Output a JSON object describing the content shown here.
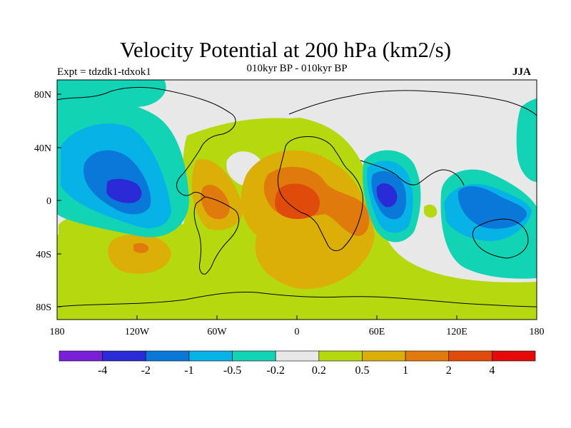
{
  "title": "Velocity Potential at 200 hPa (km2/s)",
  "expt_label": "Expt = tdzdk1-tdxok1",
  "period_label": "010kyr BP - 010kyr BP",
  "season_label": "JJA",
  "y_ticks": [
    "80N",
    "40N",
    "0",
    "40S",
    "80S"
  ],
  "x_ticks": [
    "180",
    "120W",
    "60W",
    "0",
    "60E",
    "120E",
    "180"
  ],
  "colorbar": {
    "colors": [
      "#7a1fd8",
      "#2a2ad6",
      "#0a78d8",
      "#07b2e6",
      "#12d4b4",
      "#e8e8e8",
      "#b6d80f",
      "#dcae08",
      "#e07a0c",
      "#e04a0a",
      "#e40a0a"
    ],
    "labels": [
      "-4",
      "-2",
      "-1",
      "-0.5",
      "-0.2",
      "0.2",
      "0.5",
      "1",
      "2",
      "4"
    ]
  },
  "map_background_color": "#e8e8e8"
}
